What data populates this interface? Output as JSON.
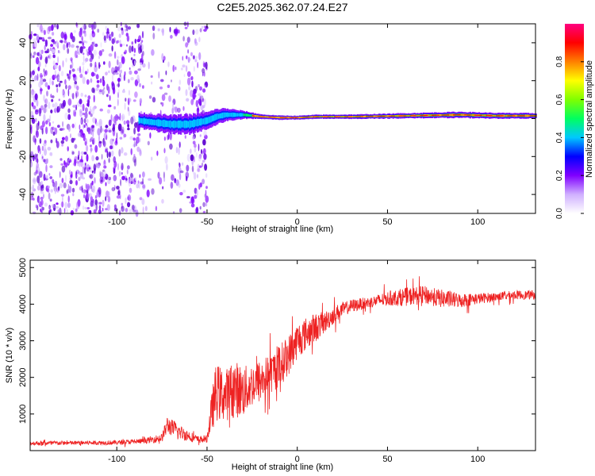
{
  "title": "C2E5.2025.362.07.24.E27",
  "chart_data": [
    {
      "type": "heatmap",
      "name": "spectrogram",
      "xlabel": "Height of straight line (km)",
      "ylabel": "Frequency (Hz)",
      "xlim": [
        -148,
        132
      ],
      "ylim": [
        -50,
        50
      ],
      "xticks": [
        -100,
        -50,
        0,
        50,
        100
      ],
      "yticks": [
        -40,
        -20,
        0,
        20,
        40
      ],
      "xtick_labels": [
        "-100",
        "-50",
        "0",
        "50",
        "100"
      ],
      "ytick_labels": [
        "-40",
        "-20",
        "0",
        "20",
        "40"
      ],
      "noise_region_x": [
        -148,
        -50
      ],
      "signal_band": {
        "x_start": -88,
        "x_end": 132,
        "center_hz": [
          [
            -88,
            -1
          ],
          [
            -80,
            -2
          ],
          [
            -70,
            -3
          ],
          [
            -60,
            -3
          ],
          [
            -50,
            -1
          ],
          [
            -45,
            1
          ],
          [
            -40,
            2
          ],
          [
            -30,
            2
          ],
          [
            -20,
            1
          ],
          [
            -10,
            0.5
          ],
          [
            0,
            0.5
          ],
          [
            10,
            1
          ],
          [
            30,
            1
          ],
          [
            60,
            1.5
          ],
          [
            90,
            2
          ],
          [
            110,
            1.5
          ],
          [
            132,
            1.5
          ]
        ],
        "half_width_hz": [
          [
            -88,
            4
          ],
          [
            -60,
            5
          ],
          [
            -45,
            4
          ],
          [
            -30,
            2
          ],
          [
            -20,
            1.2
          ],
          [
            0,
            1
          ],
          [
            40,
            1.2
          ],
          [
            90,
            1.6
          ],
          [
            132,
            1.4
          ]
        ]
      },
      "colorbar": {
        "label": "Normalized spectral amplitude",
        "range": [
          0.0,
          1.0
        ],
        "ticks": [
          0.0,
          0.2,
          0.4,
          0.6,
          0.8
        ],
        "tick_labels": [
          "0.0",
          "0.2",
          "0.4",
          "0.6",
          "0.8"
        ],
        "colors": [
          "#ffffff",
          "#d0b0ff",
          "#8000ff",
          "#0000ff",
          "#00c8ff",
          "#00ff60",
          "#7fff00",
          "#ffff00",
          "#ff8000",
          "#ff0000",
          "#ff0080"
        ]
      }
    },
    {
      "type": "line",
      "name": "snr",
      "xlabel": "Height of straight line (km)",
      "ylabel": "SNR (10 * v/v)",
      "xlim": [
        -148,
        132
      ],
      "ylim": [
        0,
        5200
      ],
      "xticks": [
        -100,
        -50,
        0,
        50,
        100
      ],
      "yticks": [
        1000,
        2000,
        3000,
        4000,
        5000
      ],
      "xtick_labels": [
        "-100",
        "-50",
        "0",
        "50",
        "100"
      ],
      "ytick_labels": [
        "1000",
        "2000",
        "3000",
        "4000",
        "5000"
      ],
      "color": "#ee2222",
      "envelope_x": [
        -148,
        -100,
        -85,
        -75,
        -72,
        -65,
        -60,
        -55,
        -50,
        -48,
        -45,
        -40,
        -35,
        -30,
        -25,
        -20,
        -15,
        -10,
        -5,
        0,
        5,
        10,
        15,
        20,
        25,
        30,
        40,
        50,
        60,
        70,
        80,
        90,
        100,
        110,
        120,
        132
      ],
      "envelope_y": [
        200,
        220,
        260,
        350,
        700,
        500,
        400,
        300,
        320,
        900,
        1600,
        1500,
        1700,
        1600,
        1800,
        1900,
        2100,
        2300,
        2600,
        3000,
        3200,
        3350,
        3500,
        3700,
        3850,
        3950,
        4050,
        4150,
        4200,
        4250,
        4150,
        4100,
        4150,
        4200,
        4250,
        4250
      ],
      "noise_amp": [
        60,
        60,
        70,
        120,
        250,
        200,
        150,
        100,
        100,
        450,
        800,
        700,
        800,
        700,
        600,
        600,
        550,
        600,
        550,
        500,
        450,
        400,
        300,
        250,
        200,
        180,
        150,
        200,
        250,
        250,
        250,
        200,
        150,
        120,
        120,
        120
      ]
    }
  ]
}
